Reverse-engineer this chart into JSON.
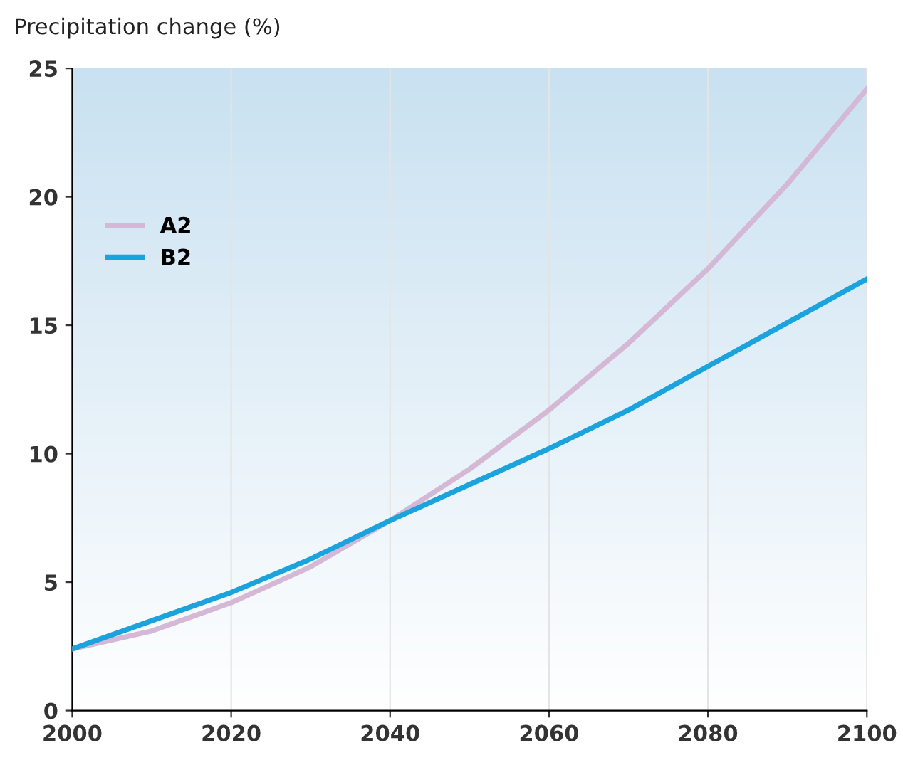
{
  "chart_data": {
    "type": "line",
    "ylabel": "Precipitation change (%)",
    "x": [
      2000,
      2010,
      2020,
      2030,
      2040,
      2050,
      2060,
      2070,
      2080,
      2090,
      2100
    ],
    "series": [
      {
        "name": "A2",
        "color": "#d4b8d6",
        "values": [
          2.4,
          3.1,
          4.2,
          5.6,
          7.4,
          9.4,
          11.7,
          14.3,
          17.2,
          20.5,
          24.2
        ]
      },
      {
        "name": "B2",
        "color": "#1aa3dd",
        "values": [
          2.4,
          3.5,
          4.6,
          5.9,
          7.4,
          8.8,
          10.2,
          11.7,
          13.4,
          15.1,
          16.8
        ]
      }
    ],
    "xlim": [
      2000,
      2100
    ],
    "xticks": [
      2000,
      2020,
      2040,
      2060,
      2080,
      2100
    ],
    "ylim": [
      0,
      25
    ],
    "yticks": [
      0,
      5,
      10,
      15,
      20,
      25
    ],
    "grid": "x",
    "legend": "top left",
    "marker": "none",
    "line_style": "solid"
  }
}
